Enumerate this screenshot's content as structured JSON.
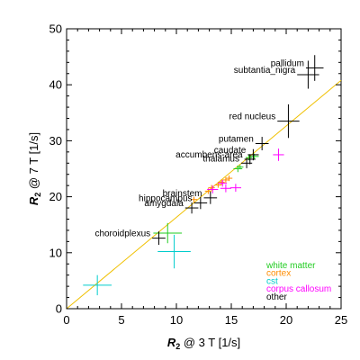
{
  "chart_data": {
    "type": "scatter",
    "xlim": [
      0,
      25
    ],
    "ylim": [
      0,
      50
    ],
    "x_ticks": [
      "0",
      "5",
      "10",
      "15",
      "20",
      "25"
    ],
    "y_ticks": [
      "0",
      "10",
      "20",
      "30",
      "40",
      "50"
    ],
    "xlabel": {
      "symbol": "R",
      "sub": "2",
      "rest": " @ 3 T [1/s]"
    },
    "ylabel": {
      "symbol": "R",
      "sub": "2",
      "rest": " @ 7 T [1/s]"
    },
    "grid": false,
    "fit_line": {
      "color": "#f0c000",
      "x": [
        0,
        25
      ],
      "y": [
        0,
        40.8
      ]
    },
    "legend_placement": "bottom-right",
    "series": [
      {
        "name": "white matter",
        "color": "#22cc22",
        "points": [
          {
            "x": 9.2,
            "y": 13.5,
            "xerr": 1.3,
            "yerr": 1.8
          },
          {
            "x": 15.6,
            "y": 25.0,
            "xerr": 0.4,
            "yerr": 0.6
          },
          {
            "x": 15.8,
            "y": 25.3,
            "xerr": 0.3,
            "yerr": 0.4
          },
          {
            "x": 16.6,
            "y": 27.0,
            "xerr": 0.3,
            "yerr": 0.5
          },
          {
            "x": 17.1,
            "y": 27.2,
            "xerr": 0.4,
            "yerr": 0.5
          }
        ]
      },
      {
        "name": "cortex",
        "color": "#ff8c00",
        "points": [
          {
            "x": 11.6,
            "y": 19.5,
            "xerr": 0.3,
            "yerr": 0.5
          },
          {
            "x": 12.9,
            "y": 21.0,
            "xerr": 0.3,
            "yerr": 0.5
          },
          {
            "x": 13.2,
            "y": 21.6,
            "xerr": 0.3,
            "yerr": 0.5
          },
          {
            "x": 13.8,
            "y": 22.1,
            "xerr": 0.3,
            "yerr": 0.5
          },
          {
            "x": 14.1,
            "y": 22.6,
            "xerr": 0.3,
            "yerr": 0.5
          },
          {
            "x": 14.5,
            "y": 23.0,
            "xerr": 0.3,
            "yerr": 0.5
          },
          {
            "x": 14.8,
            "y": 23.3,
            "xerr": 0.3,
            "yerr": 0.5
          }
        ]
      },
      {
        "name": "cst",
        "color": "#00cccc",
        "points": [
          {
            "x": 2.8,
            "y": 4.2,
            "xerr": 1.3,
            "yerr": 1.8
          },
          {
            "x": 9.8,
            "y": 10.2,
            "xerr": 1.5,
            "yerr": 3.0
          }
        ]
      },
      {
        "name": "corpus callosum",
        "color": "#ff00ff",
        "points": [
          {
            "x": 13.3,
            "y": 21.3,
            "xerr": 0.5,
            "yerr": 0.7
          },
          {
            "x": 14.2,
            "y": 22.4,
            "xerr": 0.4,
            "yerr": 0.6
          },
          {
            "x": 14.5,
            "y": 21.5,
            "xerr": 0.5,
            "yerr": 0.7
          },
          {
            "x": 15.4,
            "y": 21.6,
            "xerr": 0.5,
            "yerr": 0.7
          },
          {
            "x": 19.3,
            "y": 27.5,
            "xerr": 0.5,
            "yerr": 1.1
          }
        ]
      },
      {
        "name": "other",
        "color": "#000000",
        "points": [
          {
            "x": 22.6,
            "y": 43.0,
            "xerr": 0.8,
            "yerr": 2.3,
            "label": "pallidum"
          },
          {
            "x": 22.0,
            "y": 41.8,
            "xerr": 1.0,
            "yerr": 2.5,
            "label": "subtantia_nigra"
          },
          {
            "x": 20.2,
            "y": 33.5,
            "xerr": 1.0,
            "yerr": 3.0,
            "label": "red nucleus"
          },
          {
            "x": 17.8,
            "y": 29.5,
            "xerr": 0.6,
            "yerr": 1.2,
            "label": "putamen"
          },
          {
            "x": 17.0,
            "y": 27.5,
            "xerr": 0.5,
            "yerr": 1.0,
            "label": "caudate"
          },
          {
            "x": 16.7,
            "y": 26.7,
            "xerr": 0.5,
            "yerr": 0.9,
            "label": "accumbens-area"
          },
          {
            "x": 16.4,
            "y": 26.0,
            "xerr": 0.5,
            "yerr": 0.9,
            "label": "thalamus"
          },
          {
            "x": 13.1,
            "y": 19.8,
            "xerr": 0.6,
            "yerr": 1.1,
            "label": "brainstem"
          },
          {
            "x": 12.2,
            "y": 18.9,
            "xerr": 0.6,
            "yerr": 1.1,
            "label": "hippocampus"
          },
          {
            "x": 11.4,
            "y": 18.0,
            "xerr": 0.6,
            "yerr": 1.0,
            "label": "amygdala"
          },
          {
            "x": 8.4,
            "y": 12.6,
            "xerr": 0.6,
            "yerr": 1.2,
            "label": "choroidplexus"
          }
        ]
      }
    ]
  }
}
